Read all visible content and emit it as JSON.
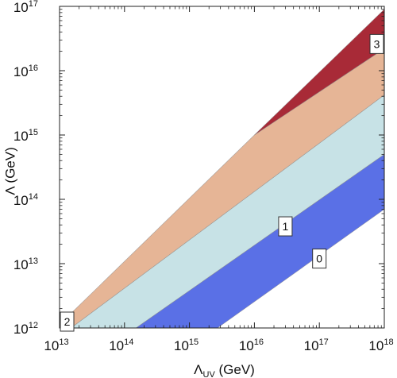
{
  "chart_data": {
    "type": "area",
    "xlabel": "Λ",
    "xlabel_sub": "UV",
    "xlabel_unit": " (GeV)",
    "ylabel": "Λ (GeV)",
    "x_scale": "log",
    "y_scale": "log",
    "xlim": [
      10000000000000.0,
      1e+18
    ],
    "ylim": [
      1000000000000.0,
      1e+17
    ],
    "x_ticks": [
      {
        "base": "10",
        "exp": "13",
        "value": 10000000000000.0
      },
      {
        "base": "10",
        "exp": "14",
        "value": 100000000000000.0
      },
      {
        "base": "10",
        "exp": "15",
        "value": 1000000000000000.0
      },
      {
        "base": "10",
        "exp": "16",
        "value": 1e+16
      },
      {
        "base": "10",
        "exp": "17",
        "value": 1e+17
      },
      {
        "base": "10",
        "exp": "18",
        "value": 1e+18
      }
    ],
    "y_ticks": [
      {
        "base": "10",
        "exp": "12",
        "value": 1000000000000.0
      },
      {
        "base": "10",
        "exp": "13",
        "value": 10000000000000.0
      },
      {
        "base": "10",
        "exp": "14",
        "value": 100000000000000.0
      },
      {
        "base": "10",
        "exp": "15",
        "value": 1000000000000000.0
      },
      {
        "base": "10",
        "exp": "16",
        "value": 1e+16
      },
      {
        "base": "10",
        "exp": "17",
        "value": 1e+17
      }
    ],
    "grid": false,
    "regions": [
      {
        "id": "region-0",
        "label": "0",
        "color": "#5a70e6",
        "boundary": [
          [
            2700000000000000.0,
            1000000000000.0
          ],
          [
            1e+18,
            70000000000000.0
          ],
          [
            1e+18,
            500000000000000.0
          ],
          [
            150000000000000.0,
            1000000000000.0
          ]
        ],
        "label_at": [
          1e+17,
          12000000000000.0
        ]
      },
      {
        "id": "region-1",
        "label": "1",
        "color": "#c7e2e6",
        "boundary": [
          [
            150000000000000.0,
            1000000000000.0
          ],
          [
            1e+18,
            500000000000000.0
          ],
          [
            1e+18,
            4200000000000000.0
          ],
          [
            15000000000000.0,
            1000000000000.0
          ]
        ],
        "label_at": [
          3e+16,
          38000000000000.0
        ]
      },
      {
        "id": "region-2",
        "label": "2",
        "color": "#e6b596",
        "boundary": [
          [
            15000000000000.0,
            1000000000000.0
          ],
          [
            1e+18,
            4200000000000000.0
          ],
          [
            1e+18,
            2.2e+16
          ],
          [
            1e+16,
            1000000000000000.0
          ],
          [
            11500000000000.0,
            1300000000000.0
          ]
        ],
        "label_at": [
          11200000000000.0,
          1000000000000.0
        ]
      },
      {
        "id": "region-3",
        "label": "3",
        "color": "#a82a37",
        "boundary": [
          [
            1e+16,
            1000000000000000.0
          ],
          [
            1e+18,
            2.2e+16
          ],
          [
            1e+18,
            9e+16
          ]
        ],
        "label_at": [
          1e+18,
          2.6e+16
        ]
      }
    ]
  }
}
